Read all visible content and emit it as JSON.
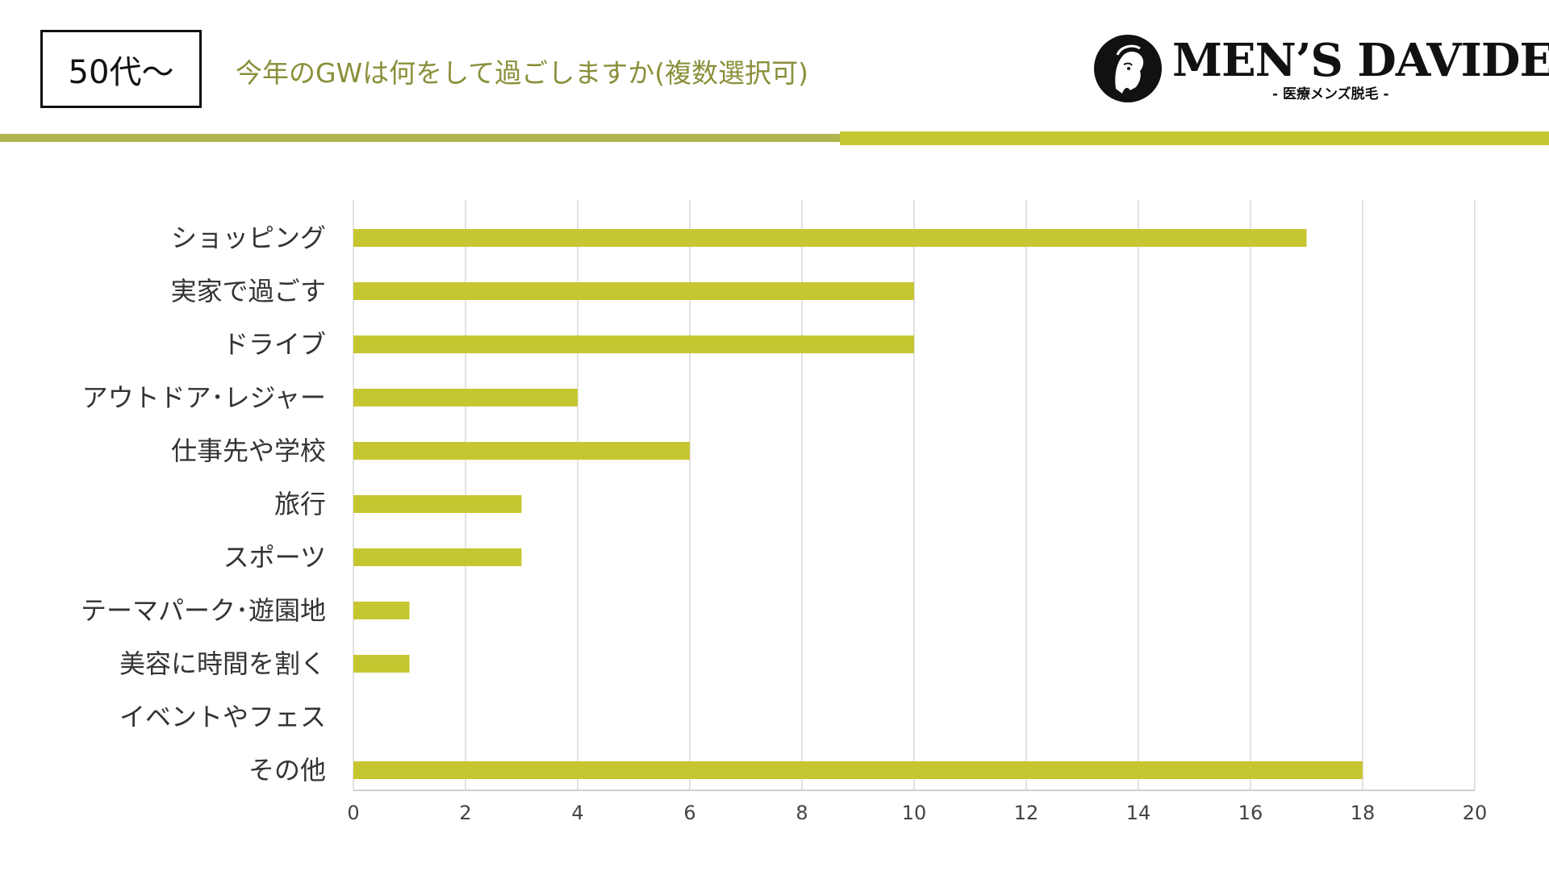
{
  "header": {
    "age_label": "50代〜",
    "question": "今年のGWは何をして過ごしますか(複数選択可)"
  },
  "brand": {
    "name": "MEN’S DAVIDE",
    "tagline": "- 医療メンズ脱毛 -"
  },
  "colors": {
    "bar": "#c6c631",
    "question_text": "#8a8f3a",
    "band_left": "#aeb44e",
    "band_right": "#c6c631"
  },
  "chart_data": {
    "type": "bar",
    "orientation": "horizontal",
    "categories": [
      "ショッピング",
      "実家で過ごす",
      "ドライブ",
      "アウトドア･レジャー",
      "仕事先や学校",
      "旅行",
      "スポーツ",
      "テーマパーク･遊園地",
      "美容に時間を割く",
      "イベントやフェス",
      "その他"
    ],
    "values": [
      17,
      10,
      10,
      4,
      6,
      3,
      3,
      1,
      1,
      0,
      18
    ],
    "xlim": [
      0,
      20
    ],
    "xticks": [
      "0",
      "2",
      "4",
      "6",
      "8",
      "10",
      "12",
      "14",
      "16",
      "18",
      "20"
    ],
    "grid": "vertical",
    "legend": "none"
  }
}
